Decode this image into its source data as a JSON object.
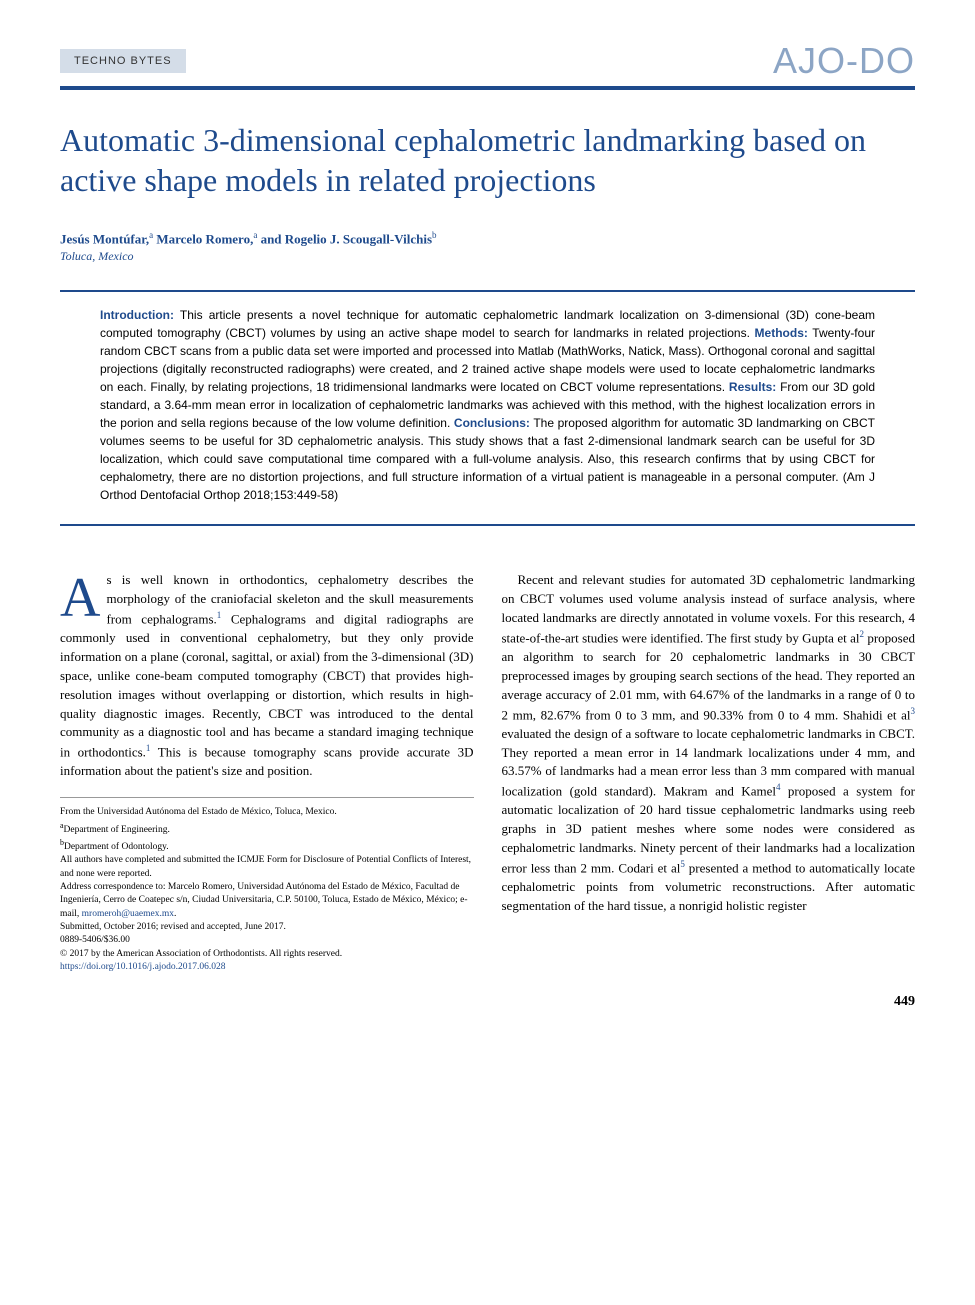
{
  "header": {
    "section_label": "TECHNO BYTES",
    "journal_logo": "AJO-DO"
  },
  "title": "Automatic 3-dimensional cephalometric landmarking based on active shape models in related projections",
  "authors_line": "Jesús Montúfar,",
  "authors_affil_a": "a",
  "authors_line2": " Marcelo Romero,",
  "authors_affil_a2": "a",
  "authors_line3": " and Rogelio J. Scougall-Vilchis",
  "authors_affil_b": "b",
  "location": "Toluca, Mexico",
  "abstract": {
    "intro_label": "Introduction:",
    "intro_text": " This article presents a novel technique for automatic cephalometric landmark localization on 3-dimensional (3D) cone-beam computed tomography (CBCT) volumes by using an active shape model to search for landmarks in related projections. ",
    "methods_label": "Methods:",
    "methods_text": " Twenty-four random CBCT scans from a public data set were imported and processed into Matlab (MathWorks, Natick, Mass). Orthogonal coronal and sagittal projections (digitally reconstructed radiographs) were created, and 2 trained active shape models were used to locate cephalometric landmarks on each. Finally, by relating projections, 18 tridimensional landmarks were located on CBCT volume representations. ",
    "results_label": "Results:",
    "results_text": " From our 3D gold standard, a 3.64-mm mean error in localization of cephalometric landmarks was achieved with this method, with the highest localization errors in the porion and sella regions because of the low volume definition. ",
    "conclusions_label": "Conclusions:",
    "conclusions_text": " The proposed algorithm for automatic 3D landmarking on CBCT volumes seems to be useful for 3D cephalometric analysis. This study shows that a fast 2-dimensional landmark search can be useful for 3D localization, which could save computational time compared with a full-volume analysis. Also, this research confirms that by using CBCT for cephalometry, there are no distortion projections, and full structure information of a virtual patient is manageable in a personal computer. (Am J Orthod Dentofacial Orthop 2018;153:449-58)"
  },
  "body": {
    "col1_dropcap": "A",
    "col1_p1a": "s is well known in orthodontics, cephalometry describes the morphology of the craniofacial skeleton and the skull measurements from cephalograms.",
    "col1_ref1": "1",
    "col1_p1b": " Cephalograms and digital radiographs are commonly used in conventional cephalometry, but they only provide information on a plane (coronal, sagittal, or axial) from the 3-dimensional (3D) space, unlike cone-beam computed tomography (CBCT) that provides high-resolution images without overlapping or distortion, which results in high-quality diagnostic images. Recently, CBCT was introduced to the dental community as a diagnostic tool and has became a standard imaging technique in orthodontics.",
    "col1_ref1b": "1",
    "col1_p1c": " This is because tomography scans provide accurate 3D information about the patient's size and position.",
    "col2_p1a": "Recent and relevant studies for automated 3D cephalometric landmarking on CBCT volumes used volume analysis instead of surface analysis, where located landmarks are directly annotated in volume voxels. For this research, 4 state-of-the-art studies were identified. The first study by Gupta et al",
    "col2_ref2": "2",
    "col2_p1b": " proposed an algorithm to search for 20 cephalometric landmarks in 30 CBCT preprocessed images by grouping search sections of the head. They reported an average accuracy of 2.01 mm, with 64.67% of the landmarks in a range of 0 to 2 mm, 82.67% from 0 to 3 mm, and 90.33% from 0 to 4 mm. Shahidi et al",
    "col2_ref3": "3",
    "col2_p1c": " evaluated the design of a software to locate cephalometric landmarks in CBCT. They reported a mean error in 14 landmark localizations under 4 mm, and 63.57% of landmarks had a mean error less than 3 mm compared with manual localization (gold standard). Makram and Kamel",
    "col2_ref4": "4",
    "col2_p1d": " proposed a system for automatic localization of 20 hard tissue cephalometric landmarks using reeb graphs in 3D patient meshes where some nodes were considered as cephalometric landmarks. Ninety percent of their landmarks had a localization error less than 2 mm. Codari et al",
    "col2_ref5": "5",
    "col2_p1e": " presented a method to automatically locate cephalometric points from volumetric reconstructions. After automatic segmentation of the hard tissue, a nonrigid holistic register"
  },
  "footnotes": {
    "line1": "From the Universidad Autónoma del Estado de México, Toluca, Mexico.",
    "line2a": "a",
    "line2b": "Department of Engineering.",
    "line3a": "b",
    "line3b": "Department of Odontology.",
    "line4": "All authors have completed and submitted the ICMJE Form for Disclosure of Potential Conflicts of Interest, and none were reported.",
    "line5a": "Address correspondence to: Marcelo Romero, Universidad Autónoma del Estado de México, Facultad de Ingeniería, Cerro de Coatepec s/n, Ciudad Universitaria, C.P. 50100, Toluca, Estado de México, México; e-mail, ",
    "line5_email": "mromeroh@uaemex.mx",
    "line5b": ".",
    "line6": "Submitted, October 2016; revised and accepted, June 2017.",
    "line7": "0889-5406/$36.00",
    "line8": "© 2017 by the American Association of Orthodontists. All rights reserved.",
    "line9": "https://doi.org/10.1016/j.ajodo.2017.06.028"
  },
  "page_number": "449",
  "colors": {
    "brand_blue": "#1e4a8c",
    "logo_light": "#8ca5c5",
    "label_bg": "#d4dde8"
  }
}
